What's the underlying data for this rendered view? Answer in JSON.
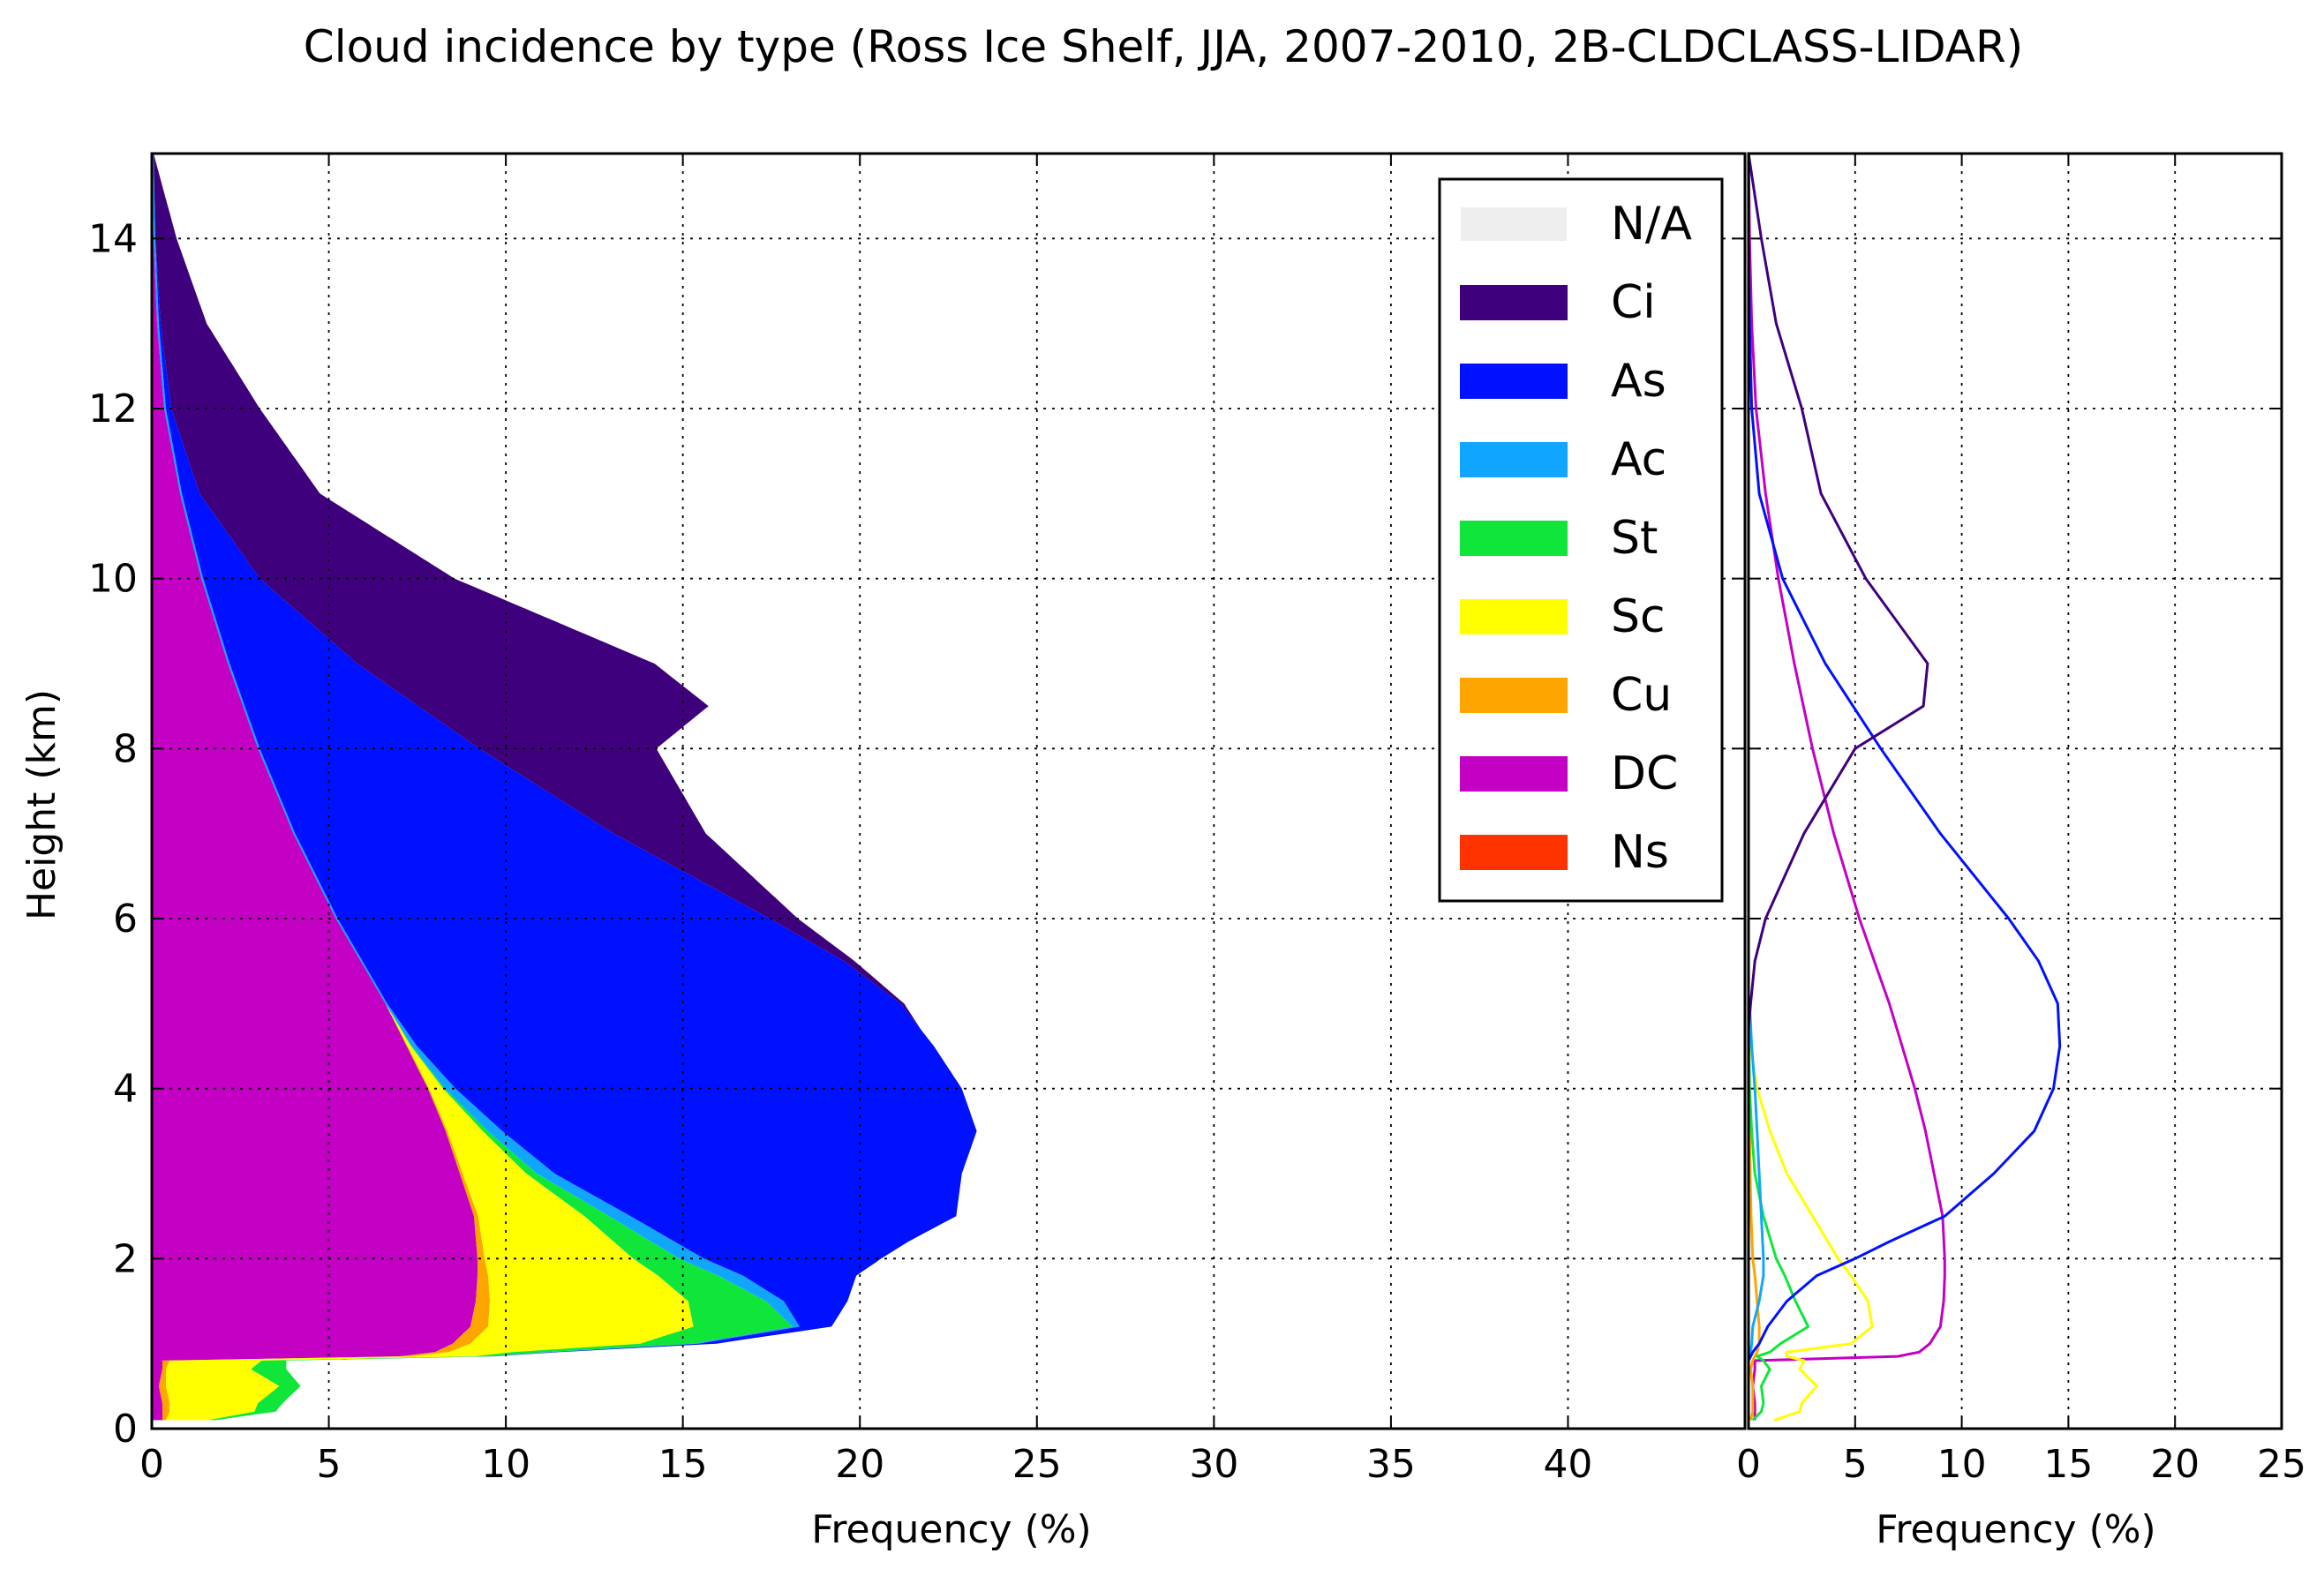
{
  "colors": {
    "N/A": "#eeeeee",
    "Ci": "#3f007d",
    "As": "#0011ff",
    "Ac": "#10a6ff",
    "St": "#10e63a",
    "Sc": "#ffff00",
    "Cu": "#ffa500",
    "DC": "#c300c3",
    "Ns": "#ff3300"
  },
  "chart_data": [
    {
      "type": "area",
      "stacked": true,
      "title": "Cloud incidence by type (Ross Ice Shelf, JJA, 2007-2010, 2B-CLDCLASS-LIDAR)",
      "xlabel": "Frequency (%)",
      "ylabel": "Height (km)",
      "xlim": [
        0,
        45
      ],
      "ylim": [
        0,
        15
      ],
      "xticks": [
        "0",
        "5",
        "10",
        "15",
        "20",
        "25",
        "30",
        "35",
        "40"
      ],
      "yticks": [
        "0",
        "2",
        "4",
        "6",
        "8",
        "10",
        "12",
        "14"
      ],
      "grid": true,
      "legend": {
        "position": "top-right",
        "entries": [
          "N/A",
          "Ci",
          "As",
          "Ac",
          "St",
          "Sc",
          "Cu",
          "DC",
          "Ns"
        ]
      },
      "series": [
        {
          "name": "DC",
          "y": [
            0.1,
            0.2,
            0.3,
            0.5,
            0.7,
            0.8,
            0.85,
            0.9,
            1.0,
            1.2,
            1.5,
            1.8,
            2.0,
            2.5,
            3.0,
            3.5,
            4.0,
            4.5,
            5.0,
            5.5,
            6,
            7,
            8,
            9,
            10,
            11,
            12,
            13,
            14,
            15
          ],
          "values": [
            0.3,
            0.3,
            0.3,
            0.2,
            0.3,
            0.3,
            7.0,
            8.0,
            8.5,
            9.0,
            9.15,
            9.2,
            9.2,
            9.1,
            8.7,
            8.3,
            7.8,
            7.2,
            6.6,
            5.9,
            5.2,
            4.0,
            3.0,
            2.15,
            1.4,
            0.8,
            0.35,
            0.15,
            0.05,
            0.0
          ]
        },
        {
          "name": "Cu",
          "y": [
            0.1,
            0.2,
            0.3,
            0.5,
            0.7,
            0.8,
            0.85,
            0.9,
            1.0,
            1.2,
            1.5,
            1.8,
            2.0,
            2.5,
            3.0,
            3.5,
            4.0,
            4.5,
            5.0
          ],
          "values": [
            0.1,
            0.2,
            0.2,
            0.2,
            0.1,
            0.2,
            0.3,
            0.4,
            0.5,
            0.5,
            0.4,
            0.3,
            0.2,
            0.12,
            0.08,
            0.05,
            0.03,
            0.02,
            0.0
          ]
        },
        {
          "name": "Sc",
          "y": [
            0.1,
            0.2,
            0.3,
            0.5,
            0.7,
            0.8,
            0.85,
            0.9,
            1.0,
            1.2,
            1.5,
            1.8,
            2.0,
            2.5,
            3.0,
            3.5,
            4.0,
            4.5,
            5.0
          ],
          "values": [
            1.2,
            2.4,
            2.5,
            3.2,
            2.4,
            2.6,
            1.8,
            1.8,
            4.8,
            5.8,
            5.6,
            4.8,
            4.2,
            3.0,
            1.8,
            1.0,
            0.4,
            0.1,
            0.0
          ]
        },
        {
          "name": "St",
          "y": [
            0.1,
            0.2,
            0.3,
            0.5,
            0.7,
            0.8,
            0.85,
            0.9,
            1.0,
            1.2,
            1.5,
            1.8,
            2.0,
            2.5,
            3.0,
            3.5,
            4.0,
            4.5,
            5.0
          ],
          "values": [
            0.2,
            0.6,
            0.7,
            0.6,
            1.0,
            0.7,
            0.4,
            1.0,
            1.5,
            2.8,
            2.2,
            1.7,
            1.3,
            0.7,
            0.3,
            0.15,
            0.05,
            0.02,
            0.0
          ]
        },
        {
          "name": "Ac",
          "y": [
            0.1,
            0.2,
            0.3,
            0.5,
            0.7,
            0.8,
            0.85,
            0.9,
            1.0,
            1.2,
            1.5,
            1.8,
            2.0,
            2.5,
            3.0,
            3.5,
            4.0,
            4.5,
            5.0
          ],
          "values": [
            0.0,
            0.0,
            0.0,
            0.0,
            0.0,
            0.0,
            0.05,
            0.1,
            0.15,
            0.2,
            0.5,
            0.7,
            0.7,
            0.6,
            0.5,
            0.4,
            0.3,
            0.15,
            0.05
          ]
        },
        {
          "name": "As",
          "y": [
            0.8,
            0.9,
            1.0,
            1.2,
            1.5,
            1.8,
            2.0,
            2.2,
            2.5,
            3.0,
            3.5,
            4.0,
            4.5,
            5.0,
            5.5,
            6,
            7,
            8,
            9,
            10,
            11,
            12,
            13,
            14,
            15
          ],
          "values": [
            0.0,
            0.2,
            0.5,
            0.9,
            1.8,
            3.2,
            5.0,
            6.6,
            9.2,
            11.5,
            13.4,
            14.3,
            14.6,
            14.5,
            13.6,
            12.2,
            9.0,
            6.2,
            3.6,
            1.6,
            0.5,
            0.15,
            0.05,
            0.0,
            0.0
          ]
        },
        {
          "name": "Ci",
          "y": [
            4.7,
            5.0,
            5.5,
            6,
            7,
            8,
            8.5,
            9,
            10,
            11,
            12,
            13,
            14,
            15
          ],
          "values": [
            0.0,
            0.1,
            0.3,
            0.8,
            2.6,
            5.0,
            8.2,
            8.4,
            5.5,
            3.4,
            2.5,
            1.3,
            0.6,
            0.0
          ]
        },
        {
          "name": "Ns",
          "y": [
            0.1,
            15
          ],
          "values": [
            0.0,
            0.0
          ]
        }
      ]
    },
    {
      "type": "line",
      "xlabel": "Frequency (%)",
      "ylabel": "",
      "xlim": [
        0,
        25
      ],
      "ylim": [
        0,
        15
      ],
      "xticks": [
        "0",
        "5",
        "10",
        "15",
        "20",
        "25"
      ],
      "yticks": [],
      "grid": true,
      "series": [
        {
          "name": "DC",
          "y": [
            0.1,
            0.2,
            0.3,
            0.5,
            0.7,
            0.8,
            0.85,
            0.9,
            1.0,
            1.2,
            1.5,
            1.8,
            2.0,
            2.5,
            3.0,
            3.5,
            4.0,
            4.5,
            5.0,
            5.5,
            6,
            7,
            8,
            9,
            10,
            11,
            12,
            13,
            14,
            15
          ],
          "values": [
            0.3,
            0.3,
            0.3,
            0.2,
            0.3,
            0.3,
            7.0,
            8.0,
            8.5,
            9.0,
            9.15,
            9.2,
            9.2,
            9.1,
            8.7,
            8.3,
            7.8,
            7.2,
            6.6,
            5.9,
            5.2,
            4.0,
            3.0,
            2.15,
            1.4,
            0.8,
            0.35,
            0.15,
            0.05,
            0.0
          ]
        },
        {
          "name": "Cu",
          "y": [
            0.1,
            0.2,
            0.3,
            0.5,
            0.7,
            0.8,
            0.85,
            0.9,
            1.0,
            1.2,
            1.5,
            1.8,
            2.0,
            2.5,
            3.0,
            3.5,
            4.0,
            4.5,
            5.0
          ],
          "values": [
            0.1,
            0.2,
            0.2,
            0.2,
            0.1,
            0.2,
            0.3,
            0.4,
            0.5,
            0.5,
            0.4,
            0.3,
            0.2,
            0.12,
            0.08,
            0.05,
            0.03,
            0.02,
            0.0
          ]
        },
        {
          "name": "Sc",
          "y": [
            0.1,
            0.2,
            0.3,
            0.5,
            0.7,
            0.8,
            0.85,
            0.9,
            1.0,
            1.2,
            1.5,
            1.8,
            2.0,
            2.5,
            3.0,
            3.5,
            4.0,
            4.5,
            5.0
          ],
          "values": [
            1.2,
            2.4,
            2.5,
            3.2,
            2.4,
            2.6,
            1.8,
            1.8,
            4.8,
            5.8,
            5.6,
            4.8,
            4.2,
            3.0,
            1.8,
            1.0,
            0.4,
            0.1,
            0.0
          ]
        },
        {
          "name": "St",
          "y": [
            0.1,
            0.2,
            0.3,
            0.5,
            0.7,
            0.8,
            0.85,
            0.9,
            1.0,
            1.2,
            1.5,
            1.8,
            2.0,
            2.5,
            3.0,
            3.5,
            4.0,
            4.5,
            5.0
          ],
          "values": [
            0.2,
            0.6,
            0.7,
            0.6,
            1.0,
            0.7,
            0.4,
            1.0,
            1.5,
            2.8,
            2.2,
            1.7,
            1.3,
            0.7,
            0.3,
            0.15,
            0.05,
            0.02,
            0.0
          ]
        },
        {
          "name": "Ac",
          "y": [
            0.1,
            0.2,
            0.3,
            0.5,
            0.7,
            0.8,
            0.85,
            0.9,
            1.0,
            1.2,
            1.5,
            1.8,
            2.0,
            2.5,
            3.0,
            3.5,
            4.0,
            4.5,
            5.0
          ],
          "values": [
            0.0,
            0.0,
            0.0,
            0.0,
            0.0,
            0.0,
            0.05,
            0.1,
            0.15,
            0.2,
            0.5,
            0.7,
            0.7,
            0.6,
            0.5,
            0.4,
            0.3,
            0.15,
            0.05
          ]
        },
        {
          "name": "As",
          "y": [
            0.8,
            0.9,
            1.0,
            1.2,
            1.5,
            1.8,
            2.0,
            2.2,
            2.5,
            3.0,
            3.5,
            4.0,
            4.5,
            5.0,
            5.5,
            6,
            7,
            8,
            9,
            10,
            11,
            12,
            13,
            14,
            15
          ],
          "values": [
            0.0,
            0.2,
            0.5,
            0.9,
            1.8,
            3.2,
            5.0,
            6.6,
            9.2,
            11.5,
            13.4,
            14.3,
            14.6,
            14.5,
            13.6,
            12.2,
            9.0,
            6.2,
            3.6,
            1.6,
            0.5,
            0.15,
            0.05,
            0.0,
            0.0
          ]
        },
        {
          "name": "Ci",
          "y": [
            4.7,
            5.0,
            5.5,
            6,
            7,
            8,
            8.5,
            9,
            10,
            11,
            12,
            13,
            14,
            15
          ],
          "values": [
            0.0,
            0.1,
            0.3,
            0.8,
            2.6,
            5.0,
            8.2,
            8.4,
            5.5,
            3.4,
            2.5,
            1.3,
            0.6,
            0.0
          ]
        }
      ]
    }
  ]
}
